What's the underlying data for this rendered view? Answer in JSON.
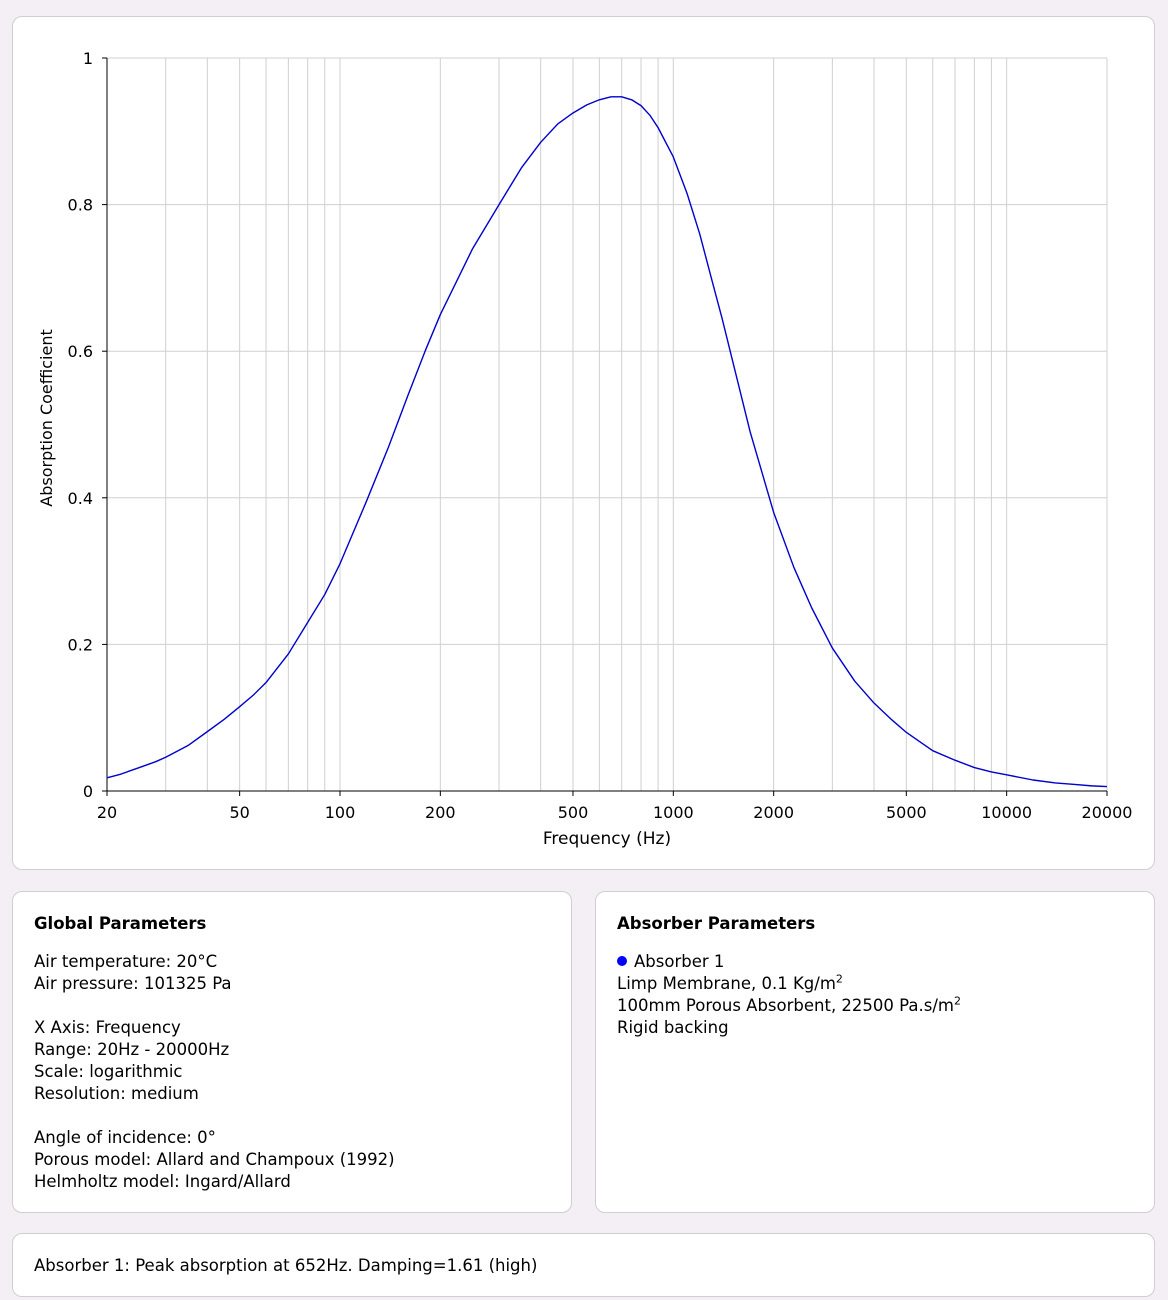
{
  "chart_data": {
    "type": "line",
    "xscale": "log",
    "xlim": [
      20,
      20000
    ],
    "ylim": [
      0,
      1
    ],
    "xlabel": "Frequency (Hz)",
    "ylabel": "Absorption Coefficient",
    "xticks": [
      20,
      50,
      100,
      200,
      500,
      1000,
      2000,
      5000,
      10000,
      20000
    ],
    "xtick_labels": [
      "20",
      "50",
      "100",
      "200",
      "500",
      "1000",
      "2000",
      "5000",
      "10000",
      "20000"
    ],
    "yticks": [
      0,
      0.2,
      0.4,
      0.6,
      0.8,
      1
    ],
    "ytick_labels": [
      "0",
      "0.2",
      "0.4",
      "0.6",
      "0.8",
      "1"
    ],
    "grid": true,
    "series": [
      {
        "color": "#0000cc",
        "x": [
          20,
          22,
          25,
          28,
          30,
          35,
          40,
          45,
          50,
          55,
          60,
          70,
          80,
          90,
          100,
          120,
          140,
          160,
          180,
          200,
          250,
          300,
          350,
          400,
          450,
          500,
          550,
          600,
          650,
          700,
          750,
          800,
          850,
          900,
          1000,
          1100,
          1200,
          1300,
          1400,
          1500,
          1700,
          2000,
          2300,
          2600,
          3000,
          3500,
          4000,
          4500,
          5000,
          5500,
          6000,
          7000,
          8000,
          9000,
          10000,
          12000,
          14000,
          16000,
          18000,
          20000
        ],
        "y": [
          0.018,
          0.023,
          0.032,
          0.04,
          0.046,
          0.062,
          0.081,
          0.098,
          0.115,
          0.131,
          0.148,
          0.187,
          0.23,
          0.268,
          0.31,
          0.395,
          0.47,
          0.54,
          0.6,
          0.65,
          0.74,
          0.8,
          0.85,
          0.885,
          0.91,
          0.925,
          0.936,
          0.943,
          0.947,
          0.947,
          0.943,
          0.935,
          0.922,
          0.905,
          0.865,
          0.815,
          0.76,
          0.7,
          0.645,
          0.59,
          0.49,
          0.38,
          0.305,
          0.25,
          0.195,
          0.15,
          0.12,
          0.098,
          0.08,
          0.067,
          0.055,
          0.042,
          0.032,
          0.026,
          0.022,
          0.015,
          0.011,
          0.009,
          0.007,
          0.006
        ]
      }
    ]
  },
  "global": {
    "title": "Global Parameters",
    "air_temperature": "Air temperature: 20°C",
    "air_pressure": "Air pressure: 101325 Pa",
    "x_axis": "X Axis: Frequency",
    "range": "Range: 20Hz - 20000Hz",
    "scale": "Scale: logarithmic",
    "resolution": "Resolution: medium",
    "angle": "Angle of incidence: 0°",
    "porous_model": "Porous model: Allard and Champoux (1992)",
    "helmholtz_model": "Helmholtz model: Ingard/Allard"
  },
  "absorber": {
    "title": "Absorber Parameters",
    "name": "Absorber 1",
    "dot_color": "#0000ff",
    "layer1": "Limp Membrane, 0.1 Kg/m",
    "layer1_sup": "2",
    "layer2": "100mm Porous Absorbent, 22500 Pa.s/m",
    "layer2_sup": "2",
    "layer3": "Rigid backing"
  },
  "summary": {
    "text": "Absorber 1: Peak absorption at 652Hz. Damping=1.61 (high)"
  }
}
